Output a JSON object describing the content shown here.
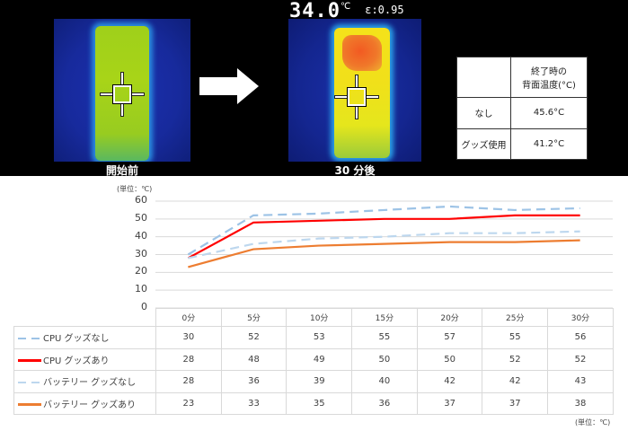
{
  "thermal_images": {
    "before": {
      "caption": "開始前"
    },
    "after": {
      "caption": "30 分後",
      "readout_temp": "34.0",
      "readout_unit": "℃",
      "emissivity": "ε:0.95"
    }
  },
  "summary_table": {
    "header": [
      "",
      "終了時の\n背面温度(°C)"
    ],
    "header_line1": "終了時の",
    "header_line2": "背面温度(°C)",
    "rows": [
      {
        "label": "なし",
        "value": "45.6°C"
      },
      {
        "label": "グッズ使用",
        "value": "41.2°C"
      }
    ]
  },
  "chart_unit_top": "(単位：℃)",
  "chart_unit_bottom": "(単位：℃)",
  "colors": {
    "cpu_none": "#9dc3e6",
    "cpu_goods": "#ff0000",
    "battery_none": "#bdd7ee",
    "battery_goods": "#ed7d31",
    "grid": "#d9d9d9"
  },
  "chart_data": {
    "type": "line",
    "title": "",
    "xlabel": "",
    "ylabel": "(単位：℃)",
    "ylim": [
      0,
      60
    ],
    "yticks": [
      0,
      10,
      20,
      30,
      40,
      50,
      60
    ],
    "grid": true,
    "legend_position": "data table (bottom)",
    "categories": [
      "0分",
      "5分",
      "10分",
      "15分",
      "20分",
      "25分",
      "30分"
    ],
    "series": [
      {
        "name": "CPU グッズなし",
        "style": "dashed",
        "color": "#9dc3e6",
        "values": [
          30,
          52,
          53,
          55,
          57,
          55,
          56
        ]
      },
      {
        "name": "CPU グッズあり",
        "style": "solid",
        "color": "#ff0000",
        "values": [
          28,
          48,
          49,
          50,
          50,
          52,
          52
        ]
      },
      {
        "name": "バッテリー グッズなし",
        "style": "dashed",
        "color": "#bdd7ee",
        "values": [
          28,
          36,
          39,
          40,
          42,
          42,
          43
        ]
      },
      {
        "name": "バッテリー グッズあり",
        "style": "solid",
        "color": "#ed7d31",
        "values": [
          23,
          33,
          35,
          36,
          37,
          37,
          38
        ]
      }
    ]
  },
  "data_table": {
    "columns": [
      "0分",
      "5分",
      "10分",
      "15分",
      "20分",
      "25分",
      "30分"
    ],
    "rows": [
      {
        "label": "CPU グッズなし",
        "cells": [
          "30",
          "52",
          "53",
          "55",
          "57",
          "55",
          "56"
        ]
      },
      {
        "label": "CPU グッズあり",
        "cells": [
          "28",
          "48",
          "49",
          "50",
          "50",
          "52",
          "52"
        ]
      },
      {
        "label": "バッテリー グッズなし",
        "cells": [
          "28",
          "36",
          "39",
          "40",
          "42",
          "42",
          "43"
        ]
      },
      {
        "label": "バッテリー グッズあり",
        "cells": [
          "23",
          "33",
          "35",
          "36",
          "37",
          "37",
          "38"
        ]
      }
    ]
  },
  "y_ticks": [
    "60",
    "50",
    "40",
    "30",
    "20",
    "10",
    "0"
  ]
}
